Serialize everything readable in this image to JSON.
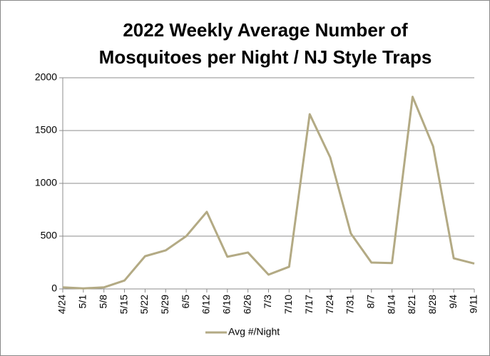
{
  "chart_data": {
    "type": "line",
    "title": [
      "2022 Weekly Average Number of",
      "Mosquitoes per Night / NJ Style Traps"
    ],
    "categories": [
      "4/24",
      "5/1",
      "5/8",
      "5/15",
      "5/22",
      "5/29",
      "6/5",
      "6/12",
      "6/19",
      "6/26",
      "7/3",
      "7/10",
      "7/17",
      "7/24",
      "7/31",
      "8/7",
      "8/14",
      "8/21",
      "8/28",
      "9/4",
      "9/11"
    ],
    "series": [
      {
        "name": "Avg #/Night",
        "color": "#b3aa84",
        "values": [
          15,
          5,
          15,
          80,
          310,
          365,
          500,
          730,
          305,
          345,
          135,
          210,
          1655,
          1245,
          525,
          250,
          245,
          1820,
          1350,
          290,
          240
        ]
      }
    ],
    "ylim": [
      0,
      2000
    ],
    "yticks": [
      0,
      500,
      1000,
      1500,
      2000
    ],
    "grid": true,
    "legend": "bottom"
  }
}
